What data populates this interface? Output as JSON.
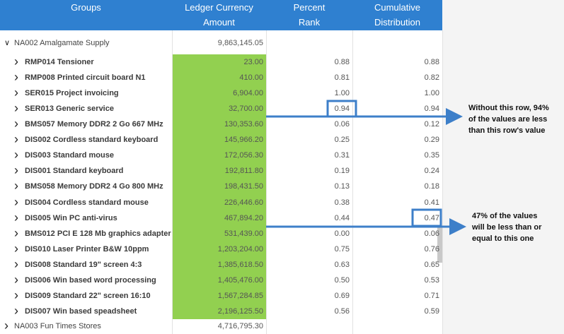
{
  "header": {
    "columns": [
      [
        "Groups"
      ],
      [
        "Ledger Currency",
        "Amount"
      ],
      [
        "Percent",
        "Rank"
      ],
      [
        "Cumulative",
        "Distribution"
      ]
    ]
  },
  "groups": [
    {
      "label": "NA002 Amalgamate Supply",
      "amount": "9,863,145.05",
      "children": [
        {
          "label": "RMP014 Tensioner",
          "amount": "23.00",
          "rank": "0.88",
          "cumulative": "0.88"
        },
        {
          "label": "RMP008 Printed circuit board N1",
          "amount": "410.00",
          "rank": "0.81",
          "cumulative": "0.82"
        },
        {
          "label": "SER015 Project invoicing",
          "amount": "6,904.00",
          "rank": "1.00",
          "cumulative": "1.00"
        },
        {
          "label": "SER013 Generic service",
          "amount": "32,700.00",
          "rank": "0.94",
          "cumulative": "0.94"
        },
        {
          "label": "BMS057 Memory DDR2 2 Go 667 MHz",
          "amount": "130,353.60",
          "rank": "0.06",
          "cumulative": "0.12"
        },
        {
          "label": "DIS002 Cordless standard keyboard",
          "amount": "145,966.20",
          "rank": "0.25",
          "cumulative": "0.29"
        },
        {
          "label": "DIS003 Standard mouse",
          "amount": "172,056.30",
          "rank": "0.31",
          "cumulative": "0.35"
        },
        {
          "label": "DIS001 Standard keyboard",
          "amount": "192,811.80",
          "rank": "0.19",
          "cumulative": "0.24"
        },
        {
          "label": "BMS058 Memory DDR2 4 Go 800 MHz",
          "amount": "198,431.50",
          "rank": "0.13",
          "cumulative": "0.18"
        },
        {
          "label": "DIS004 Cordless standard mouse",
          "amount": "226,446.60",
          "rank": "0.38",
          "cumulative": "0.41"
        },
        {
          "label": "DIS005 Win PC anti-virus",
          "amount": "467,894.20",
          "rank": "0.44",
          "cumulative": "0.47"
        },
        {
          "label": "BMS012 PCI E 128 Mb graphics adapter",
          "amount": "531,439.00",
          "rank": "0.00",
          "cumulative": "0.06"
        },
        {
          "label": "DIS010 Laser Printer B&W 10ppm",
          "amount": "1,203,204.00",
          "rank": "0.75",
          "cumulative": "0.76"
        },
        {
          "label": "DIS008 Standard 19\" screen 4:3",
          "amount": "1,385,618.50",
          "rank": "0.63",
          "cumulative": "0.65"
        },
        {
          "label": "DIS006 Win based word processing",
          "amount": "1,405,476.00",
          "rank": "0.50",
          "cumulative": "0.53"
        },
        {
          "label": "DIS009 Standard 22\" screen 16:10",
          "amount": "1,567,284.85",
          "rank": "0.69",
          "cumulative": "0.71"
        },
        {
          "label": "DIS007 Win based speadsheet",
          "amount": "2,196,125.50",
          "rank": "0.56",
          "cumulative": "0.59"
        }
      ]
    },
    {
      "label": "NA003 Fun Times Stores",
      "amount": "4,716,795.30"
    }
  ],
  "annotations": [
    [
      "Without this row, 94%",
      "of the values are less",
      "than this row's value"
    ],
    [
      "47% of the values",
      "will be less than or",
      "equal to this one"
    ]
  ]
}
